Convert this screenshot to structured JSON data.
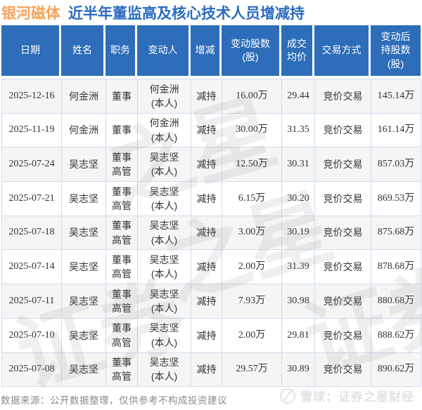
{
  "title": {
    "stock": "银河磁体",
    "subtitle": "近半年董监高及核心技术人员增减持"
  },
  "colors": {
    "header_bg": "#2d6db9",
    "title_blue": "#2a6cc0",
    "title_orange": "#f8a257",
    "decrease_green": "#21a24b",
    "grid_border": "#cfdcee",
    "zebra_gray": "#f5f5f5"
  },
  "table": {
    "headers": [
      "日期",
      "姓名",
      "职务",
      "变动人",
      "增减",
      "变动股数\n(股)",
      "成交\n均价",
      "交易方式",
      "变动后\n持股数\n(股)"
    ],
    "rows": [
      {
        "date": "2025-12-16",
        "name": "何金洲",
        "position": "董事",
        "changer": "何金洲\n(本人)",
        "direction": "减持",
        "shares": "16.00万",
        "avg_price": "29.44",
        "method": "竞价交易",
        "after": "145.14万"
      },
      {
        "date": "2025-11-19",
        "name": "何金洲",
        "position": "董事",
        "changer": "何金洲\n(本人)",
        "direction": "减持",
        "shares": "30.00万",
        "avg_price": "31.35",
        "method": "竞价交易",
        "after": "161.14万"
      },
      {
        "date": "2025-07-24",
        "name": "吴志坚",
        "position": "董事\n高管",
        "changer": "吴志坚\n(本人)",
        "direction": "减持",
        "shares": "12.50万",
        "avg_price": "30.31",
        "method": "竞价交易",
        "after": "857.03万"
      },
      {
        "date": "2025-07-21",
        "name": "吴志坚",
        "position": "董事\n高管",
        "changer": "吴志坚\n(本人)",
        "direction": "减持",
        "shares": "6.15万",
        "avg_price": "30.20",
        "method": "竞价交易",
        "after": "869.53万"
      },
      {
        "date": "2025-07-18",
        "name": "吴志坚",
        "position": "董事\n高管",
        "changer": "吴志坚\n(本人)",
        "direction": "减持",
        "shares": "3.00万",
        "avg_price": "30.19",
        "method": "竞价交易",
        "after": "875.68万"
      },
      {
        "date": "2025-07-14",
        "name": "吴志坚",
        "position": "董事\n高管",
        "changer": "吴志坚\n(本人)",
        "direction": "减持",
        "shares": "2.00万",
        "avg_price": "31.39",
        "method": "竞价交易",
        "after": "878.68万"
      },
      {
        "date": "2025-07-11",
        "name": "吴志坚",
        "position": "董事\n高管",
        "changer": "吴志坚\n(本人)",
        "direction": "减持",
        "shares": "7.93万",
        "avg_price": "30.98",
        "method": "竞价交易",
        "after": "880.68万"
      },
      {
        "date": "2025-07-10",
        "name": "吴志坚",
        "position": "董事\n高管",
        "changer": "吴志坚\n(本人)",
        "direction": "减持",
        "shares": "2.00万",
        "avg_price": "29.81",
        "method": "竞价交易",
        "after": "888.62万"
      },
      {
        "date": "2025-07-08",
        "name": "吴志坚",
        "position": "董事\n高管",
        "changer": "吴志坚\n(本人)",
        "direction": "减持",
        "shares": "29.57万",
        "avg_price": "30.89",
        "method": "竞价交易",
        "after": "890.62万"
      }
    ]
  },
  "chart_data": {
    "type": "table",
    "title": "银河磁体 近半年董监高及核心技术人员增减持",
    "columns": [
      "日期",
      "姓名",
      "职务",
      "变动人",
      "增减",
      "变动股数(股)",
      "成交均价",
      "交易方式",
      "变动后持股数(股)"
    ],
    "rows": [
      [
        "2025-12-16",
        "何金洲",
        "董事",
        "何金洲(本人)",
        "减持",
        "16.00万",
        "29.44",
        "竞价交易",
        "145.14万"
      ],
      [
        "2025-11-19",
        "何金洲",
        "董事",
        "何金洲(本人)",
        "减持",
        "30.00万",
        "31.35",
        "竞价交易",
        "161.14万"
      ],
      [
        "2025-07-24",
        "吴志坚",
        "董事高管",
        "吴志坚(本人)",
        "减持",
        "12.50万",
        "30.31",
        "竞价交易",
        "857.03万"
      ],
      [
        "2025-07-21",
        "吴志坚",
        "董事高管",
        "吴志坚(本人)",
        "减持",
        "6.15万",
        "30.20",
        "竞价交易",
        "869.53万"
      ],
      [
        "2025-07-18",
        "吴志坚",
        "董事高管",
        "吴志坚(本人)",
        "减持",
        "3.00万",
        "30.19",
        "竞价交易",
        "875.68万"
      ],
      [
        "2025-07-14",
        "吴志坚",
        "董事高管",
        "吴志坚(本人)",
        "减持",
        "2.00万",
        "31.39",
        "竞价交易",
        "878.68万"
      ],
      [
        "2025-07-11",
        "吴志坚",
        "董事高管",
        "吴志坚(本人)",
        "减持",
        "7.93万",
        "30.98",
        "竞价交易",
        "880.68万"
      ],
      [
        "2025-07-10",
        "吴志坚",
        "董事高管",
        "吴志坚(本人)",
        "减持",
        "2.00万",
        "29.81",
        "竞价交易",
        "888.62万"
      ],
      [
        "2025-07-08",
        "吴志坚",
        "董事高管",
        "吴志坚(本人)",
        "减持",
        "29.57万",
        "30.89",
        "竞价交易",
        "890.62万"
      ]
    ]
  },
  "footer": {
    "source": "数据来源：公开数据整理，仅供参考不构成投资建议",
    "brand": "雪球：证券之星财经"
  },
  "watermarks": {
    "wm1": "之星",
    "wm2": "之星",
    "wm3": "证券",
    "wm4": "证券"
  }
}
